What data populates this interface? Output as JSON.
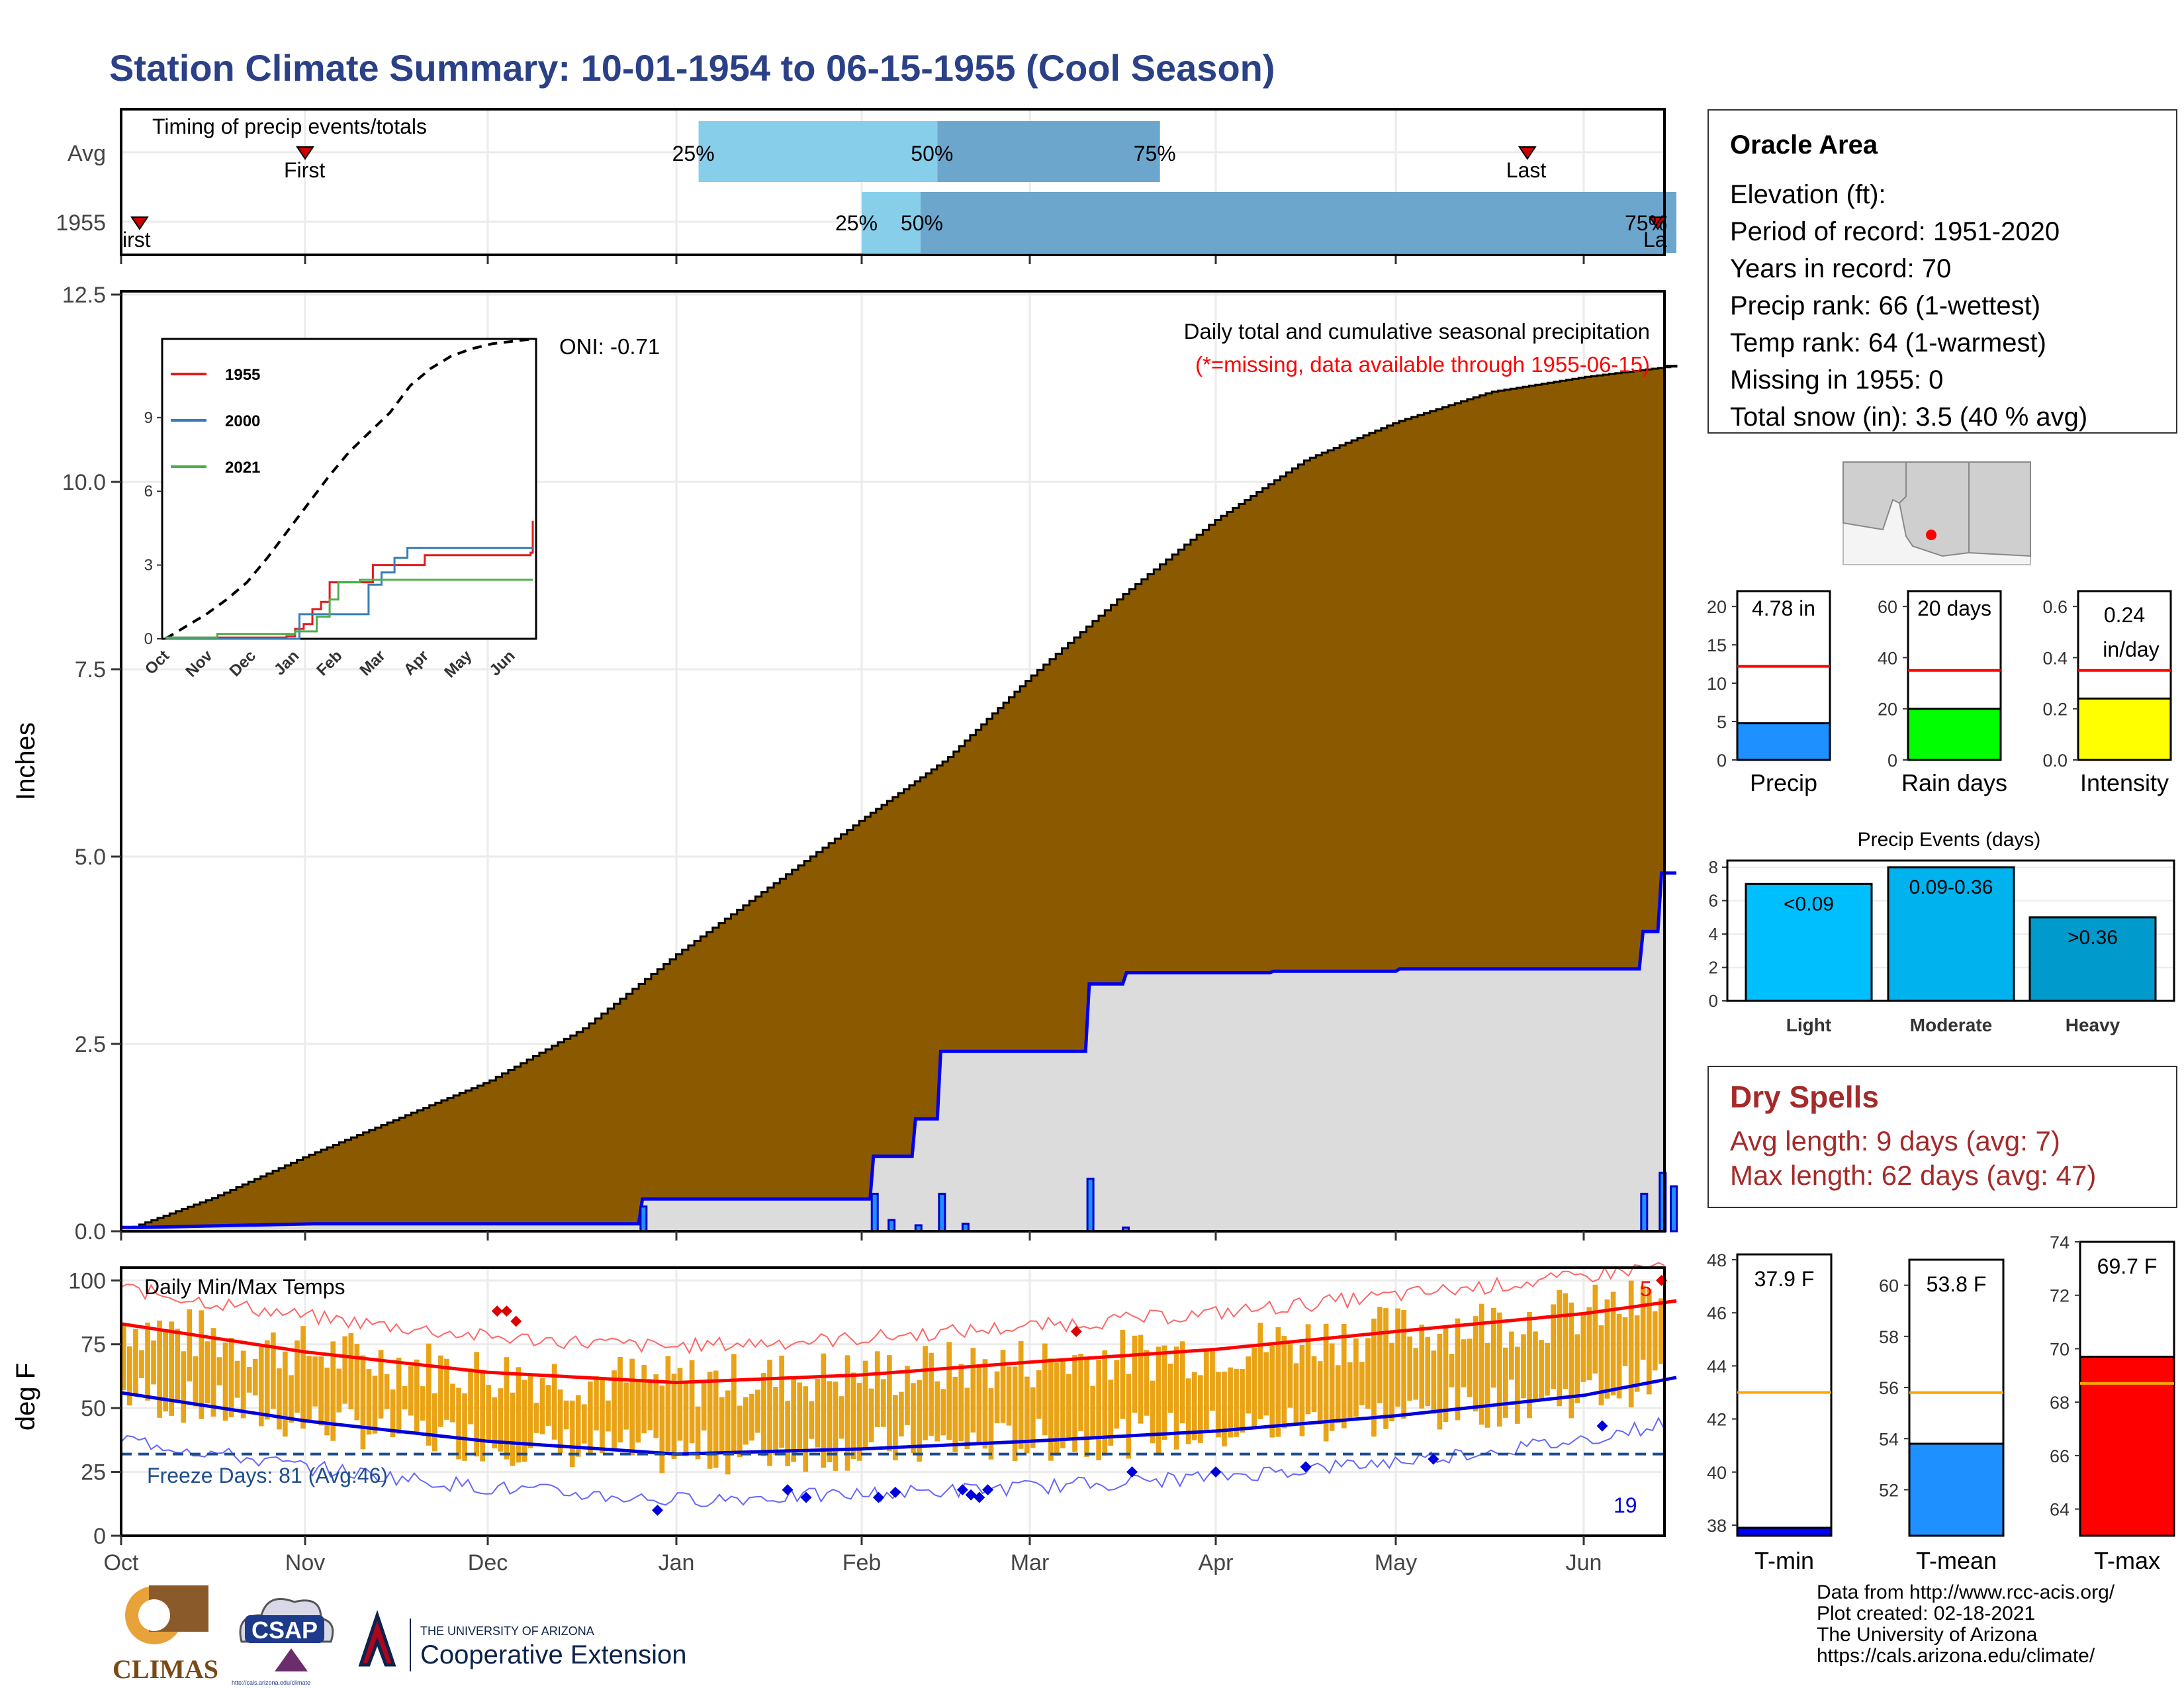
{
  "title": "Station Climate Summary: 10-01-1954 to 06-15-1955 (Cool Season)",
  "timing": {
    "label": "Timing of precip events/totals",
    "rows": [
      "Avg",
      "1955"
    ],
    "avg": {
      "first_label": "First",
      "last_label": "Last",
      "p25": "25%",
      "p50": "50%",
      "p75": "75%"
    },
    "y1955": {
      "first_label": "First",
      "last_label": "Last",
      "p25": "25%",
      "p50": "50%",
      "p75": "75%"
    }
  },
  "precip": {
    "ylabel": "Inches",
    "header": "Daily total and cumulative seasonal precipitation",
    "note": "(*=missing, data available through 1955-06-15)",
    "oni": "ONI: -0.71",
    "yticks": [
      "0.0",
      "2.5",
      "5.0",
      "7.5",
      "10.0",
      "12.5"
    ]
  },
  "inset": {
    "legend": [
      "1955",
      "2000",
      "2021"
    ],
    "legend_colors": [
      "#e41a1c",
      "#377eb8",
      "#4daf4a"
    ],
    "yticks": [
      "0",
      "3",
      "6",
      "9"
    ],
    "xticks": [
      "Oct",
      "Nov",
      "Dec",
      "Jan",
      "Feb",
      "Mar",
      "Apr",
      "May",
      "Jun"
    ]
  },
  "temps": {
    "ylabel": "deg F",
    "label": "Daily Min/Max Temps",
    "freeze": "Freeze Days: 81 (Avg:46)",
    "count_hi": "5",
    "count_lo": "19",
    "yticks": [
      "0",
      "25",
      "50",
      "75",
      "100"
    ]
  },
  "months": [
    "Oct",
    "Nov",
    "Dec",
    "Jan",
    "Feb",
    "Mar",
    "Apr",
    "May",
    "Jun"
  ],
  "info": {
    "name": "Oracle Area",
    "lines": [
      "Elevation (ft):",
      "Period of record: 1951-2020",
      "Years in record: 70",
      "Precip rank: 66 (1-wettest)",
      "Temp rank: 64 (1-warmest)",
      "Missing in 1955: 0",
      "Total snow (in): 3.5 (40 % avg)"
    ]
  },
  "summary_bars": [
    {
      "name": "Precip",
      "value_label": "4.78 in",
      "value": 4.78,
      "avg": 12.2,
      "ymax": 22,
      "ticks": [
        "0",
        "5",
        "10",
        "15",
        "20"
      ],
      "color": "#1e90ff"
    },
    {
      "name": "Rain days",
      "value_label": "20 days",
      "value": 20,
      "avg": 35,
      "ymax": 66,
      "ticks": [
        "0",
        "20",
        "40",
        "60"
      ],
      "color": "#00ff00"
    },
    {
      "name": "Intensity",
      "value_label": "0.24 in/day",
      "value": 0.24,
      "avg": 0.35,
      "ymax": 0.66,
      "ticks": [
        "0.0",
        "0.2",
        "0.4",
        "0.6"
      ],
      "color": "#ffff00"
    }
  ],
  "events": {
    "title": "Precip Events (days)",
    "ticks": [
      "0",
      "2",
      "4",
      "6",
      "8"
    ],
    "bars": [
      {
        "name": "Light",
        "label": "<0.09",
        "value": 7,
        "color": "#00bfff"
      },
      {
        "name": "Moderate",
        "label": "0.09-0.36",
        "value": 8,
        "color": "#00b2ee"
      },
      {
        "name": "Heavy",
        "label": ">0.36",
        "value": 5,
        "color": "#009acd"
      }
    ]
  },
  "dry": {
    "title": "Dry Spells",
    "avg": "Avg length: 9 days (avg: 7)",
    "max": "Max length: 62 days (avg: 47)"
  },
  "temp_bars": [
    {
      "name": "T-min",
      "value_label": "37.9 F",
      "value": 37.9,
      "avg": 43.0,
      "ymin": 37.6,
      "ymax": 48.2,
      "ticks": [
        "38",
        "40",
        "42",
        "44",
        "46",
        "48"
      ],
      "color": "#0000ff"
    },
    {
      "name": "T-mean",
      "value_label": "53.8 F",
      "value": 53.8,
      "avg": 55.8,
      "ymin": 50.2,
      "ymax": 61.0,
      "ticks": [
        "52",
        "54",
        "56",
        "58",
        "60"
      ],
      "color": "#1e90ff"
    },
    {
      "name": "T-max",
      "value_label": "69.7 F",
      "value": 69.7,
      "avg": 68.7,
      "ymin": 63.0,
      "ymax": 74.0,
      "ticks": [
        "64",
        "66",
        "68",
        "70",
        "72",
        "74"
      ],
      "color": "#ff0000"
    }
  ],
  "footer": [
    "Data from http://www.rcc-acis.org/",
    "Plot created: 02-18-2021",
    "The University of Arizona",
    "https://cals.arizona.edu/climate/"
  ],
  "logos": {
    "climas": "CLIMAS",
    "csap": "CSAP",
    "csap_url": "http://cals.arizona.edu/climate",
    "ua_small": "THE UNIVERSITY OF ARIZONA",
    "ua_big": "Cooperative Extension"
  },
  "chart_data": [
    {
      "type": "line",
      "title": "Daily total and cumulative seasonal precipitation",
      "ylabel": "Inches",
      "ylim": [
        0,
        12.5
      ],
      "x_unit": "month",
      "x": [
        0,
        0.5,
        1,
        1.5,
        2,
        2.5,
        3,
        3.5,
        4,
        4.5,
        5,
        5.5,
        6,
        6.5,
        7,
        7.5,
        8,
        8.5
      ],
      "series": [
        {
          "name": "Avg",
          "values": [
            0.0,
            0.45,
            1.0,
            1.5,
            2.0,
            2.7,
            3.7,
            4.6,
            5.5,
            6.3,
            7.4,
            8.5,
            9.5,
            10.3,
            10.8,
            11.2,
            11.4,
            11.55
          ]
        },
        {
          "name": "1955",
          "values": [
            0.05,
            0.08,
            0.1,
            0.1,
            0.1,
            0.43,
            0.43,
            1.0,
            2.4,
            2.4,
            3.3,
            3.45,
            3.47,
            3.5,
            3.5,
            3.5,
            3.55,
            4.78
          ]
        }
      ]
    },
    {
      "type": "line",
      "title": "Daily Min/Max Temps",
      "ylabel": "deg F",
      "ylim": [
        0,
        105
      ],
      "x_unit": "month",
      "x": [
        0,
        1,
        2,
        3,
        4,
        5,
        6,
        7,
        8,
        8.5
      ],
      "series": [
        {
          "name": "Avg max",
          "values": [
            83,
            72,
            64,
            60,
            63,
            68,
            73,
            80,
            87,
            92
          ]
        },
        {
          "name": "Avg min",
          "values": [
            56,
            45,
            37,
            32,
            34,
            37,
            41,
            47,
            55,
            62
          ]
        }
      ]
    }
  ]
}
